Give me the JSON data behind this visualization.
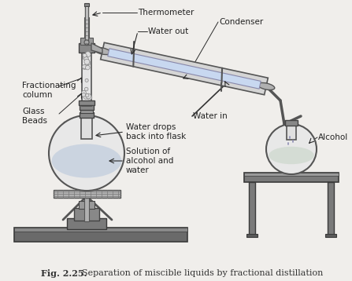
{
  "title": "Fig. 2.25.  Separation of miscible liquids by fractional distillation",
  "bg_color": "#f0eeeb",
  "labels": {
    "thermometer": "Thermometer",
    "water_out": "Water out",
    "condenser": "Condenser",
    "fractionating": "Fractionating\ncolumn",
    "glass_beads": "Glass\nBeads",
    "water_drops": "Water drops\nback into flask",
    "solution": "Solution of\nalcohol and\nwater",
    "water_in": "Water in",
    "alcohol": "Alcohol"
  },
  "fig_bold": "Fig. 2.25.",
  "fig_rest": "  Separation of miscible liquids by fractional distillation",
  "dark": "#2a2a2a",
  "mid": "#888888",
  "light": "#cccccc",
  "glass": "#e5e5e5",
  "glass_ec": "#555555",
  "metal": "#999999",
  "table_dark": "#7a7a7a"
}
